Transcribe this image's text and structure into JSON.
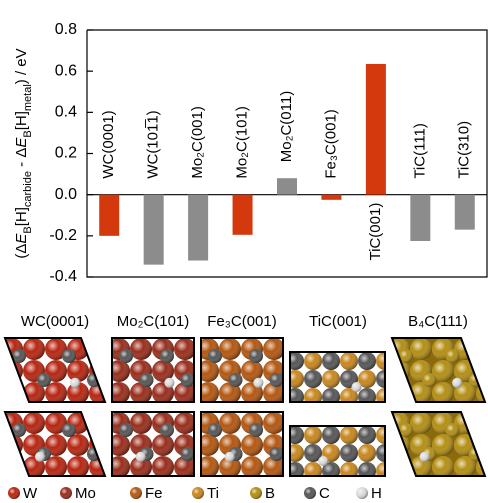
{
  "chart_data": {
    "type": "bar",
    "ylabel": [
      {
        "text": "(Δ",
        "style": "normal"
      },
      {
        "text": "E",
        "style": "italic"
      },
      {
        "text": "B",
        "style": "sub"
      },
      {
        "text": "[H]",
        "style": "normal"
      },
      {
        "text": "carbide",
        "style": "sub"
      },
      {
        "text": " - Δ",
        "style": "normal"
      },
      {
        "text": "E",
        "style": "italic"
      },
      {
        "text": "B",
        "style": "sub"
      },
      {
        "text": "[H]",
        "style": "normal"
      },
      {
        "text": "metal",
        "style": "sub"
      },
      {
        "text": ") / eV",
        "style": "normal"
      }
    ],
    "categories": [
      "WC(0001)",
      "WC(101̅1)",
      "Mo₂C(001)",
      "Mo₂C(101)",
      "Mo₂C(011)",
      "Fe₃C(001)",
      "TiC(001)",
      "TiC(111)",
      "TiC(310)"
    ],
    "values": [
      -0.2,
      -0.34,
      -0.32,
      -0.195,
      0.08,
      -0.025,
      0.635,
      -0.225,
      -0.17
    ],
    "colors": [
      "#d4380d",
      "#8c8c8c",
      "#8c8c8c",
      "#d4380d",
      "#8c8c8c",
      "#d4380d",
      "#d4380d",
      "#8c8c8c",
      "#8c8c8c"
    ],
    "ylim": [
      -0.4,
      0.8
    ],
    "yticks": [
      -0.4,
      -0.2,
      {
        "value": 0,
        "label": "0.0"
      },
      0.2,
      0.4,
      0.6,
      0.8
    ]
  },
  "structures": {
    "labels": [
      "WC(0001)",
      "Mo₂C(101)",
      "Fe₃C(001)",
      "TiC(001)",
      "B₄C(111)"
    ]
  },
  "legend": [
    {
      "label": "W",
      "color": "#b8240f"
    },
    {
      "label": "Mo",
      "color": "#9a2c1a"
    },
    {
      "label": "Fe",
      "color": "#b4560f"
    },
    {
      "label": "Ti",
      "color": "#c8861c"
    },
    {
      "label": "B",
      "color": "#b38e12"
    },
    {
      "label": "C",
      "color": "#555555"
    },
    {
      "label": "H",
      "color": "#dddddd"
    }
  ]
}
